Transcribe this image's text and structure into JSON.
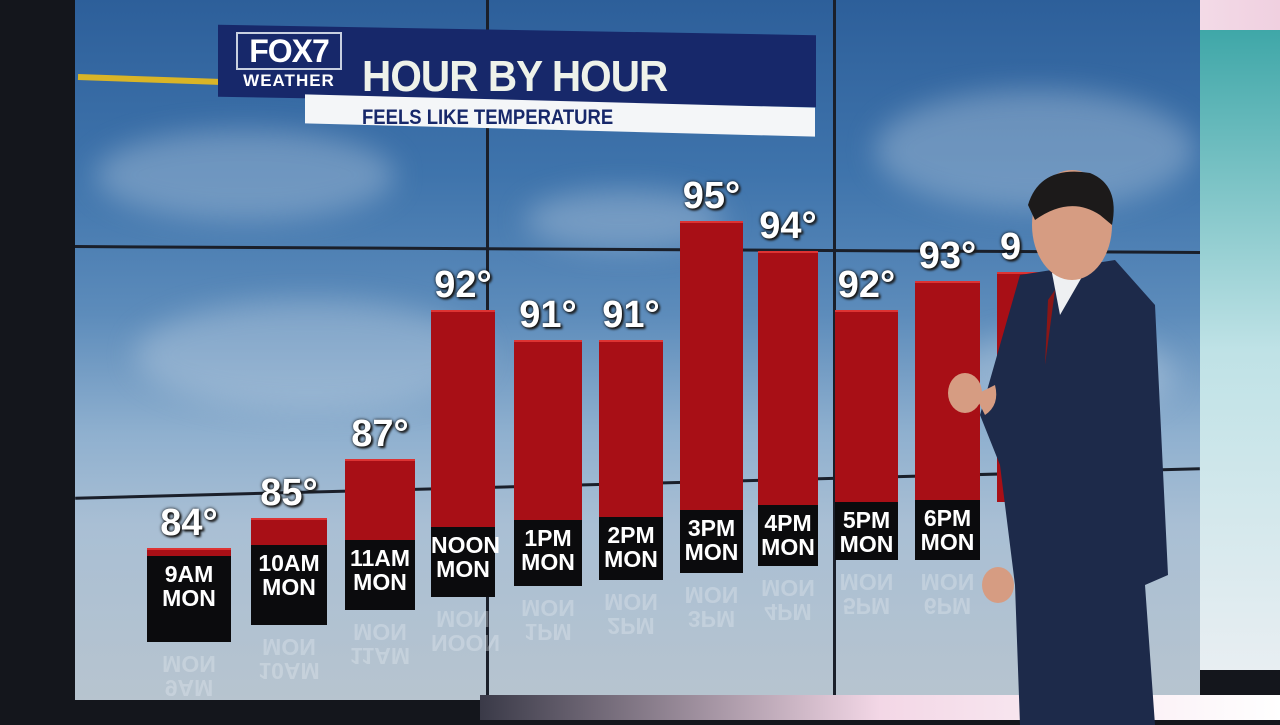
{
  "header": {
    "logo_main": "FOX7",
    "logo_sub": "WEATHER",
    "title": "HOUR BY HOUR",
    "subtitle": "FEELS LIKE TEMPERATURE"
  },
  "chart_data": {
    "type": "bar",
    "title": "HOUR BY HOUR",
    "subtitle": "FEELS LIKE TEMPERATURE",
    "categories": [
      "9AM MON",
      "10AM MON",
      "11AM MON",
      "NOON MON",
      "1PM MON",
      "2PM MON",
      "3PM MON",
      "4PM MON",
      "5PM MON",
      "6PM MON"
    ],
    "values": [
      84,
      85,
      87,
      92,
      91,
      91,
      95,
      94,
      92,
      93
    ],
    "value_labels": [
      "84°",
      "85°",
      "87°",
      "92°",
      "91°",
      "91°",
      "95°",
      "94°",
      "92°",
      "93°"
    ],
    "partial_bar_label": "9",
    "unit": "°F",
    "bar_color": "#a80f16"
  }
}
